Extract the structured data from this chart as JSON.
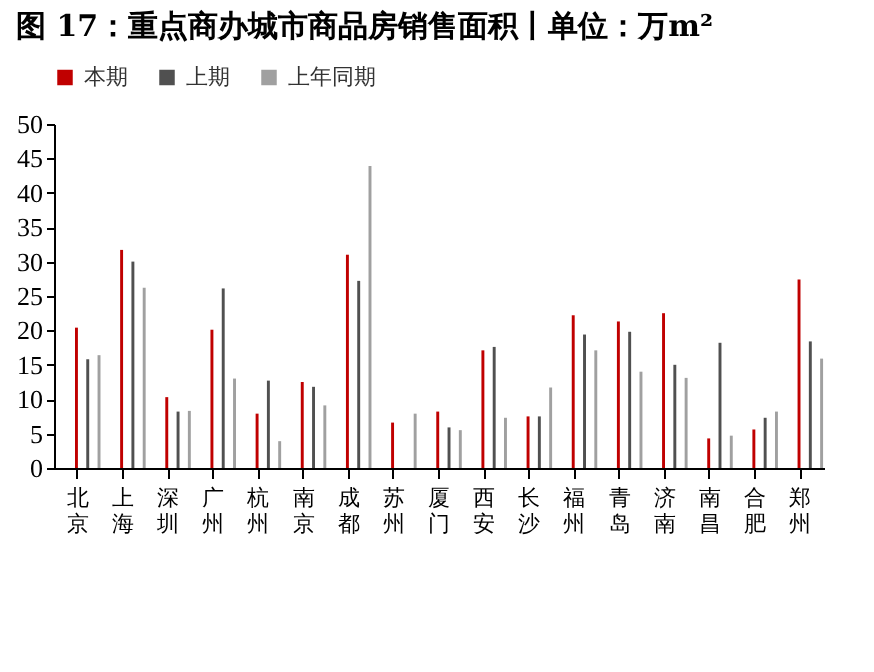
{
  "chart_data": {
    "type": "bar",
    "title": "图 17：重点商办城市商品房销售面积丨单位：万m²",
    "categories": [
      "北京",
      "上海",
      "深圳",
      "广州",
      "杭州",
      "南京",
      "成都",
      "苏州",
      "厦门",
      "西安",
      "长沙",
      "福州",
      "青岛",
      "济南",
      "南昌",
      "合肥",
      "郑州"
    ],
    "series": [
      {
        "name": "本期",
        "color": "#c00000",
        "values": [
          20.4,
          31.7,
          10.3,
          20.1,
          7.9,
          12.5,
          31.0,
          6.6,
          8.2,
          17.1,
          7.5,
          22.2,
          21.3,
          22.5,
          4.3,
          5.6,
          27.4
        ]
      },
      {
        "name": "上期",
        "color": "#505050",
        "values": [
          15.8,
          30.0,
          8.2,
          26.1,
          12.7,
          11.8,
          27.2,
          null,
          5.9,
          17.6,
          7.5,
          19.4,
          19.8,
          15.0,
          18.2,
          7.3,
          18.4
        ]
      },
      {
        "name": "上年同期",
        "color": "#a0a0a0",
        "values": [
          16.4,
          26.2,
          8.3,
          13.0,
          3.9,
          9.1,
          43.9,
          7.9,
          5.5,
          7.3,
          11.7,
          17.1,
          14.0,
          13.1,
          4.7,
          8.2,
          15.9
        ]
      }
    ],
    "ylim": [
      0,
      50
    ],
    "yticks": [
      0,
      5,
      10,
      15,
      20,
      25,
      30,
      35,
      40,
      45,
      50
    ],
    "grid": false,
    "legend": "top"
  }
}
